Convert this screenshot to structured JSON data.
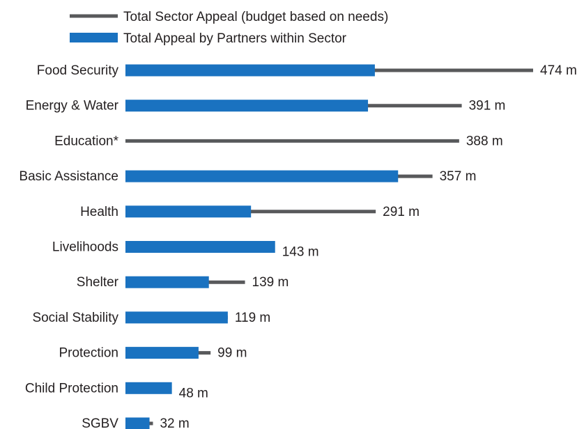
{
  "chart_data": {
    "type": "bar",
    "orientation": "horizontal",
    "legend": {
      "placement": "top-left",
      "items": [
        {
          "label": "Total Sector Appeal (budget based on needs)",
          "shape": "line",
          "color": "#58595b"
        },
        {
          "label": "Total Appeal by Partners within Sector",
          "shape": "bar",
          "color": "#1a72c0"
        }
      ]
    },
    "categories": [
      "Food Security",
      "Energy & Water",
      "Education*",
      "Basic Assistance",
      "Health",
      "Livelihoods",
      "Shelter",
      "Social Stability",
      "Protection",
      "Child Protection",
      "SGBV"
    ],
    "series": [
      {
        "name": "Total Sector Appeal (budget based on needs)",
        "color": "#58595b",
        "values": [
          474,
          391,
          388,
          357,
          291,
          143,
          139,
          119,
          99,
          48,
          32
        ]
      },
      {
        "name": "Total Appeal by Partners within Sector",
        "color": "#1a72c0",
        "values": [
          290,
          282,
          0,
          317,
          146,
          174,
          97,
          119,
          85,
          54,
          28
        ]
      }
    ],
    "data_labels": [
      "474 m",
      "391 m",
      "388 m",
      "357 m",
      "291 m",
      "143 m",
      "139 m",
      "119 m",
      "99 m",
      "48 m",
      "32 m"
    ],
    "xlim": [
      0,
      474
    ],
    "grid": false
  }
}
